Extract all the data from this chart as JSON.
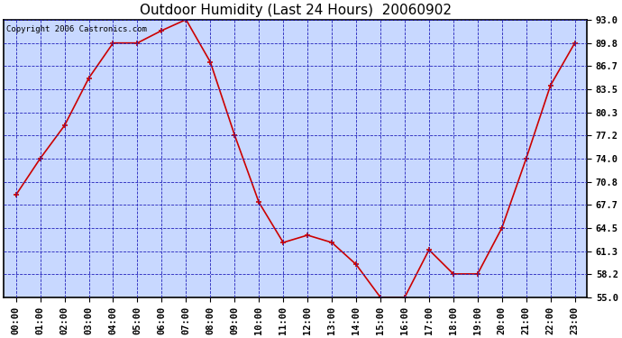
{
  "title": "Outdoor Humidity (Last 24 Hours)  20060902",
  "copyright_text": "Copyright 2006 Castronics.com",
  "x_labels": [
    "00:00",
    "01:00",
    "02:00",
    "03:00",
    "04:00",
    "05:00",
    "06:00",
    "07:00",
    "08:00",
    "09:00",
    "10:00",
    "11:00",
    "12:00",
    "13:00",
    "14:00",
    "15:00",
    "16:00",
    "17:00",
    "18:00",
    "19:00",
    "20:00",
    "21:00",
    "22:00",
    "23:00"
  ],
  "y_values": [
    69.0,
    74.0,
    78.5,
    85.0,
    89.8,
    89.8,
    91.5,
    93.0,
    87.2,
    77.2,
    68.0,
    62.5,
    63.5,
    62.5,
    59.5,
    55.0,
    55.0,
    61.5,
    58.2,
    58.2,
    64.5,
    74.0,
    84.0,
    89.8
  ],
  "line_color": "#cc0000",
  "marker": "+",
  "marker_color": "#cc0000",
  "plot_bg_color": "#c8d8ff",
  "grid_color": "#2222bb",
  "outer_bg": "#ffffff",
  "ylim": [
    55.0,
    93.0
  ],
  "ytick_values": [
    55.0,
    58.2,
    61.3,
    64.5,
    67.7,
    70.8,
    74.0,
    77.2,
    80.3,
    83.5,
    86.7,
    89.8,
    93.0
  ],
  "ytick_labels": [
    "55.0",
    "58.2",
    "61.3",
    "64.5",
    "67.7",
    "70.8",
    "74.0",
    "77.2",
    "80.3",
    "83.5",
    "86.7",
    "89.8",
    "93.0"
  ],
  "title_fontsize": 11,
  "tick_fontsize": 7.5,
  "copyright_fontsize": 6.5
}
